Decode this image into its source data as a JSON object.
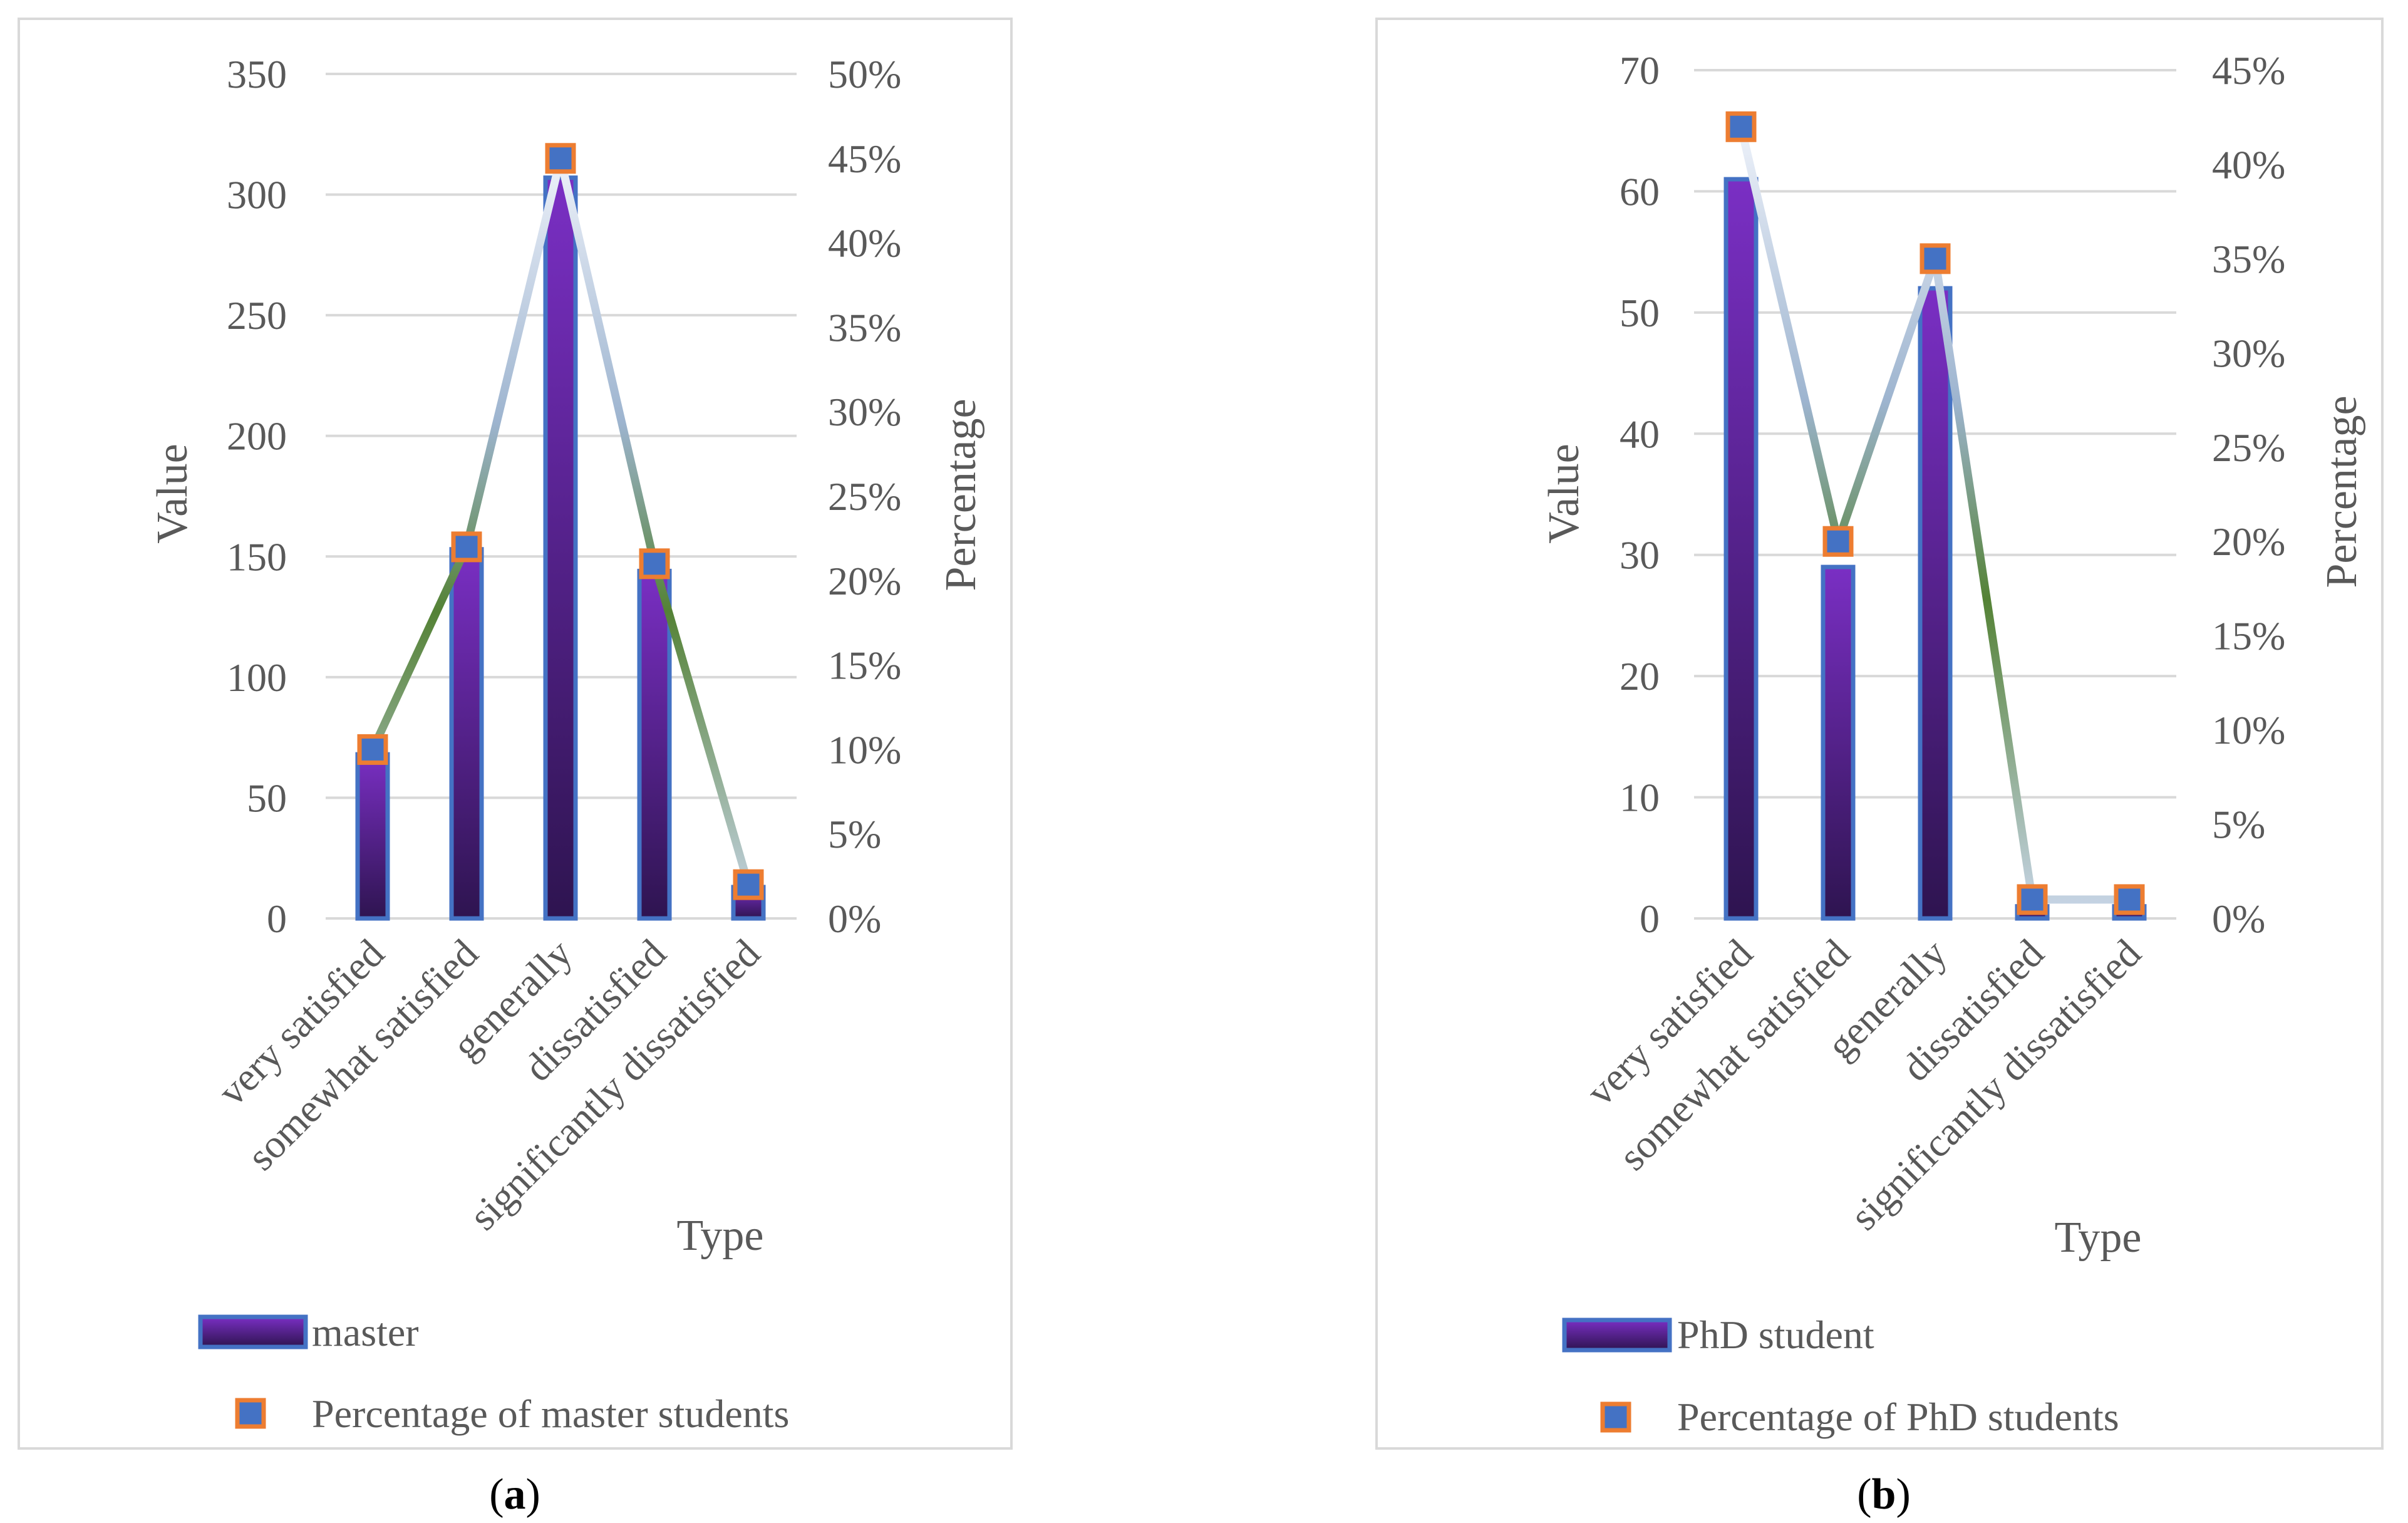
{
  "chart_data": [
    {
      "type": "bar",
      "panel_label_open": "(",
      "panel_label_letter": "a",
      "panel_label_close": ")",
      "categories": [
        "very satisfied",
        "somewhat satisfied",
        "generally",
        "dissatisfied",
        "significantly dissatisfied"
      ],
      "series": [
        {
          "name": "master",
          "kind": "bar",
          "axis": "left",
          "values": [
            68,
            153,
            307,
            144,
            13
          ]
        },
        {
          "name": "Percentage of master students",
          "kind": "line",
          "axis": "right",
          "values": [
            0.1,
            0.22,
            0.45,
            0.21,
            0.02
          ]
        }
      ],
      "xlabel": "Type",
      "ylabel": "Value",
      "y2label": "Percentage",
      "ylim": [
        0,
        350
      ],
      "yticks": [
        0,
        50,
        100,
        150,
        200,
        250,
        300,
        350
      ],
      "y2lim": [
        0,
        0.5
      ],
      "y2ticks": [
        "0%",
        "5%",
        "10%",
        "15%",
        "20%",
        "25%",
        "30%",
        "35%",
        "40%",
        "45%",
        "50%"
      ],
      "grid": true,
      "legend_position": "bottom"
    },
    {
      "type": "bar",
      "panel_label_open": "(",
      "panel_label_letter": "b",
      "panel_label_close": ")",
      "categories": [
        "very satisfied",
        "somewhat satisfied",
        "generally",
        "dissatisfied",
        "significantly dissatisfied"
      ],
      "series": [
        {
          "name": "PhD student",
          "kind": "bar",
          "axis": "left",
          "values": [
            61,
            29,
            52,
            1,
            1
          ]
        },
        {
          "name": "Percentage of PhD students",
          "kind": "line",
          "axis": "right",
          "values": [
            0.42,
            0.2,
            0.35,
            0.01,
            0.01
          ]
        }
      ],
      "xlabel": "Type",
      "ylabel": "Value",
      "y2label": "Percentage",
      "ylim": [
        0,
        70
      ],
      "yticks": [
        0,
        10,
        20,
        30,
        40,
        50,
        60,
        70
      ],
      "y2lim": [
        0,
        0.45
      ],
      "y2ticks": [
        "0%",
        "5%",
        "10%",
        "15%",
        "20%",
        "25%",
        "30%",
        "35%",
        "40%",
        "45%"
      ],
      "grid": true,
      "legend_position": "bottom"
    }
  ],
  "colors": {
    "bar_top": "#7a2fc4",
    "bar_bottom": "#2e1450",
    "bar_border": "#4472c4",
    "marker_fill": "#4472c4",
    "marker_border": "#ed7d31",
    "line_light": "#dde6f5",
    "line_mid": "#9db4cf",
    "line_dark": "#548235",
    "grid": "#d9d9d9",
    "frame": "#d9d9d9"
  }
}
